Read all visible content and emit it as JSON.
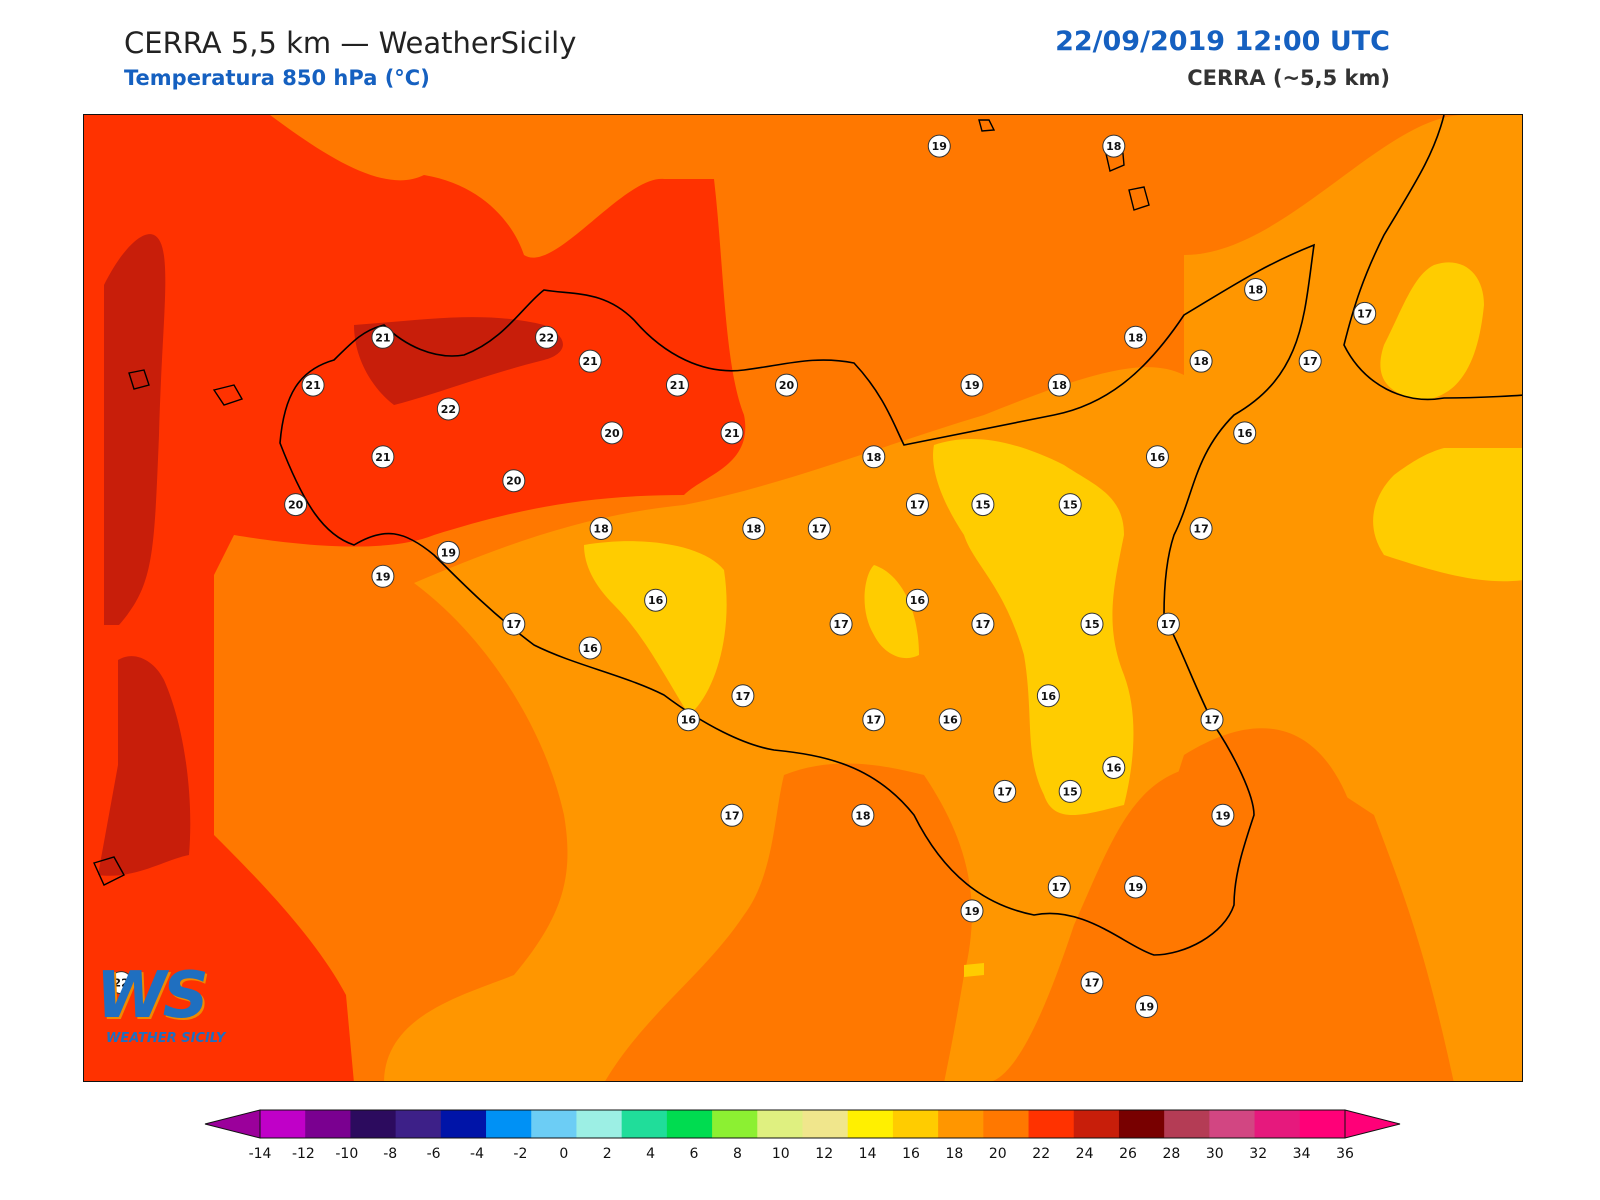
{
  "header": {
    "title": "CERRA 5,5 km — WeatherSicily",
    "subtitle": "Temperatura 850 hPa (°C)",
    "datetime": "22/09/2019 12:00 UTC",
    "model": "CERRA (~5,5 km)"
  },
  "logo": {
    "text": "WEATHER SICILY",
    "monogram": "WS"
  },
  "colorbar": {
    "min": -14,
    "max": 36,
    "step": 2,
    "tick_labels": [
      "-14",
      "-12",
      "-10",
      "-8",
      "-6",
      "-4",
      "-2",
      "0",
      "2",
      "4",
      "6",
      "8",
      "10",
      "12",
      "14",
      "16",
      "18",
      "20",
      "22",
      "24",
      "26",
      "28",
      "30",
      "32",
      "34",
      "36"
    ],
    "colors": [
      "#c000c8",
      "#7a0090",
      "#2c0b5e",
      "#3d2088",
      "#0014a8",
      "#0091f5",
      "#6ccdf5",
      "#9cefe4",
      "#20dd9a",
      "#00dc50",
      "#8cf032",
      "#dff080",
      "#f0e68c",
      "#fff000",
      "#ffcc00",
      "#ff9600",
      "#ff7800",
      "#ff3200",
      "#c81e0a",
      "#780000",
      "#b43c55",
      "#d24682",
      "#e6197d",
      "#ff0078"
    ],
    "under_color": "#9b009b",
    "over_color": "#ff0078"
  },
  "stations": [
    {
      "v": "19",
      "lon": 14.92,
      "lat": 39.32
    },
    {
      "v": "18",
      "lon": 15.72,
      "lat": 39.32
    },
    {
      "v": "18",
      "lon": 16.37,
      "lat": 38.72
    },
    {
      "v": "17",
      "lon": 16.87,
      "lat": 38.62
    },
    {
      "v": "21",
      "lon": 12.37,
      "lat": 38.52
    },
    {
      "v": "22",
      "lon": 13.12,
      "lat": 38.52
    },
    {
      "v": "21",
      "lon": 13.32,
      "lat": 38.42
    },
    {
      "v": "18",
      "lon": 15.82,
      "lat": 38.52
    },
    {
      "v": "18",
      "lon": 16.12,
      "lat": 38.42
    },
    {
      "v": "17",
      "lon": 16.62,
      "lat": 38.42
    },
    {
      "v": "21",
      "lon": 12.05,
      "lat": 38.32
    },
    {
      "v": "22",
      "lon": 12.67,
      "lat": 38.22
    },
    {
      "v": "21",
      "lon": 13.72,
      "lat": 38.32
    },
    {
      "v": "20",
      "lon": 14.22,
      "lat": 38.32
    },
    {
      "v": "19",
      "lon": 15.07,
      "lat": 38.32
    },
    {
      "v": "18",
      "lon": 15.47,
      "lat": 38.32
    },
    {
      "v": "20",
      "lon": 13.42,
      "lat": 38.12
    },
    {
      "v": "21",
      "lon": 13.97,
      "lat": 38.12
    },
    {
      "v": "16",
      "lon": 16.32,
      "lat": 38.12
    },
    {
      "v": "21",
      "lon": 12.37,
      "lat": 38.02
    },
    {
      "v": "18",
      "lon": 14.62,
      "lat": 38.02
    },
    {
      "v": "16",
      "lon": 15.92,
      "lat": 38.02
    },
    {
      "v": "20",
      "lon": 12.97,
      "lat": 37.92
    },
    {
      "v": "20",
      "lon": 11.97,
      "lat": 37.82
    },
    {
      "v": "17",
      "lon": 14.82,
      "lat": 37.82
    },
    {
      "v": "15",
      "lon": 15.12,
      "lat": 37.82
    },
    {
      "v": "15",
      "lon": 15.52,
      "lat": 37.82
    },
    {
      "v": "18",
      "lon": 13.37,
      "lat": 37.72
    },
    {
      "v": "18",
      "lon": 14.07,
      "lat": 37.72
    },
    {
      "v": "17",
      "lon": 14.37,
      "lat": 37.72
    },
    {
      "v": "17",
      "lon": 16.12,
      "lat": 37.72
    },
    {
      "v": "19",
      "lon": 12.67,
      "lat": 37.62
    },
    {
      "v": "19",
      "lon": 12.37,
      "lat": 37.52
    },
    {
      "v": "16",
      "lon": 13.62,
      "lat": 37.42
    },
    {
      "v": "16",
      "lon": 14.82,
      "lat": 37.42
    },
    {
      "v": "17",
      "lon": 12.97,
      "lat": 37.32
    },
    {
      "v": "17",
      "lon": 14.47,
      "lat": 37.32
    },
    {
      "v": "17",
      "lon": 15.12,
      "lat": 37.32
    },
    {
      "v": "15",
      "lon": 15.62,
      "lat": 37.32
    },
    {
      "v": "17",
      "lon": 15.97,
      "lat": 37.32
    },
    {
      "v": "16",
      "lon": 13.32,
      "lat": 37.22
    },
    {
      "v": "17",
      "lon": 14.02,
      "lat": 37.02
    },
    {
      "v": "16",
      "lon": 15.42,
      "lat": 37.02
    },
    {
      "v": "16",
      "lon": 13.77,
      "lat": 36.92
    },
    {
      "v": "17",
      "lon": 14.62,
      "lat": 36.92
    },
    {
      "v": "16",
      "lon": 14.97,
      "lat": 36.92
    },
    {
      "v": "17",
      "lon": 16.17,
      "lat": 36.92
    },
    {
      "v": "16",
      "lon": 15.72,
      "lat": 36.72
    },
    {
      "v": "17",
      "lon": 15.22,
      "lat": 36.62
    },
    {
      "v": "15",
      "lon": 15.52,
      "lat": 36.62
    },
    {
      "v": "17",
      "lon": 13.97,
      "lat": 36.52
    },
    {
      "v": "18",
      "lon": 14.57,
      "lat": 36.52
    },
    {
      "v": "19",
      "lon": 16.22,
      "lat": 36.52
    },
    {
      "v": "17",
      "lon": 15.47,
      "lat": 36.22
    },
    {
      "v": "19",
      "lon": 15.82,
      "lat": 36.22
    },
    {
      "v": "19",
      "lon": 15.07,
      "lat": 36.12
    },
    {
      "v": "22",
      "lon": 11.17,
      "lat": 35.82
    },
    {
      "v": "17",
      "lon": 15.62,
      "lat": 35.82
    },
    {
      "v": "19",
      "lon": 15.87,
      "lat": 35.72
    }
  ]
}
